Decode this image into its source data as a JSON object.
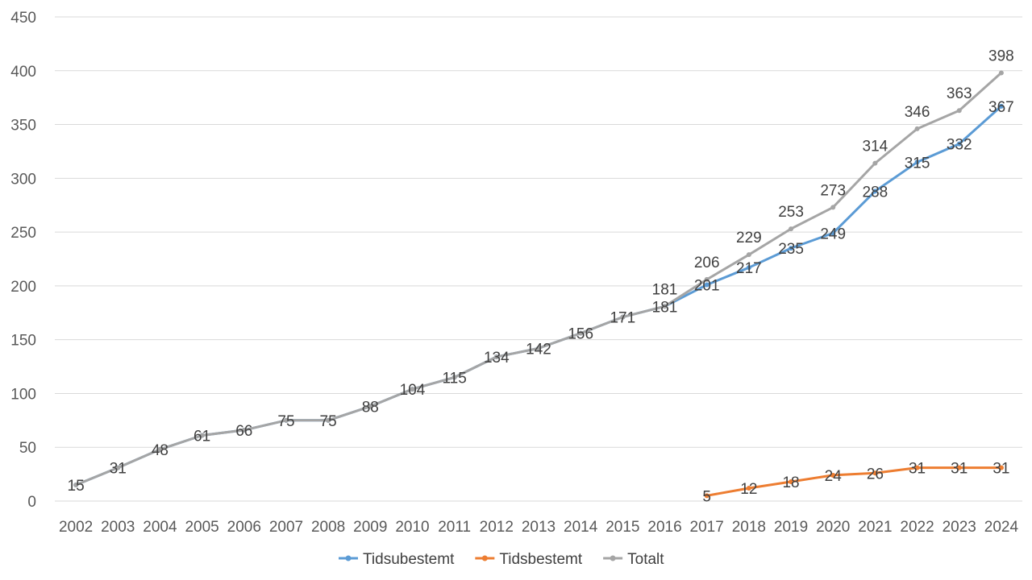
{
  "chart_data": {
    "type": "line",
    "title": "",
    "xlabel": "",
    "ylabel": "",
    "ylim": [
      0,
      450
    ],
    "yticks": [
      0,
      50,
      100,
      150,
      200,
      250,
      300,
      350,
      400,
      450
    ],
    "grid": true,
    "legend": "bottom",
    "categories": [
      "2002",
      "2003",
      "2004",
      "2005",
      "2006",
      "2007",
      "2008",
      "2009",
      "2010",
      "2011",
      "2012",
      "2013",
      "2014",
      "2015",
      "2016",
      "2017",
      "2018",
      "2019",
      "2020",
      "2021",
      "2022",
      "2023",
      "2024"
    ],
    "series": [
      {
        "name": "Tidsubestemt",
        "color": "#5b9bd5",
        "values": [
          15,
          31,
          48,
          61,
          66,
          75,
          75,
          88,
          104,
          115,
          134,
          142,
          156,
          171,
          181,
          201,
          217,
          235,
          249,
          288,
          315,
          332,
          367
        ]
      },
      {
        "name": "Tidsbestemt",
        "color": "#ed7d31",
        "values": [
          null,
          null,
          null,
          null,
          null,
          null,
          null,
          null,
          null,
          null,
          null,
          null,
          null,
          null,
          null,
          5,
          12,
          18,
          24,
          26,
          31,
          31,
          31
        ]
      },
      {
        "name": "Totalt",
        "color": "#a5a5a5",
        "values": [
          15,
          31,
          48,
          61,
          66,
          75,
          75,
          88,
          104,
          115,
          134,
          142,
          156,
          171,
          181,
          206,
          229,
          253,
          273,
          314,
          346,
          363,
          398
        ]
      }
    ],
    "data_labels": {
      "Tidsubestemt": [
        null,
        null,
        null,
        null,
        null,
        null,
        null,
        null,
        null,
        null,
        null,
        null,
        null,
        null,
        "181",
        "201",
        "217",
        "235",
        "249",
        "288",
        "315",
        "332",
        "367"
      ],
      "Tidsbestemt": [
        null,
        null,
        null,
        null,
        null,
        null,
        null,
        null,
        null,
        null,
        null,
        null,
        null,
        null,
        null,
        "5",
        "12",
        "18",
        "24",
        "26",
        "31",
        "31",
        "31"
      ],
      "Totalt": [
        "15",
        "31",
        "48",
        "61",
        "66",
        "75",
        "75",
        "88",
        "104",
        "115",
        "134",
        "142",
        "156",
        "171",
        "181",
        "206",
        "229",
        "253",
        "273",
        "314",
        "346",
        "363",
        "398"
      ]
    }
  }
}
